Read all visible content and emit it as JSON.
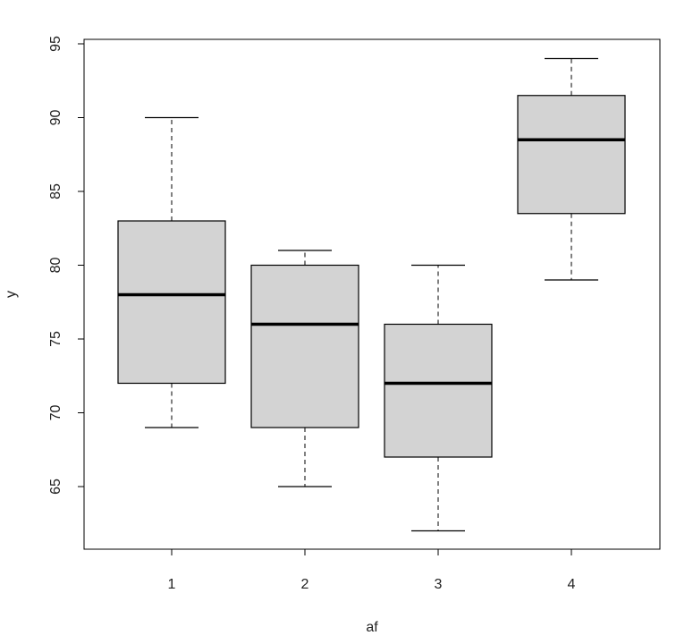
{
  "chart_data": {
    "type": "box",
    "xlabel": "af",
    "ylabel": "y",
    "ylim": [
      60,
      95
    ],
    "yticks": [
      65,
      70,
      75,
      80,
      85,
      90,
      95
    ],
    "categories": [
      "1",
      "2",
      "3",
      "4"
    ],
    "boxes": [
      {
        "category": "1",
        "min": 69,
        "q1": 72,
        "median": 78,
        "q3": 83,
        "max": 90
      },
      {
        "category": "2",
        "min": 65,
        "q1": 69,
        "median": 76,
        "q3": 80,
        "max": 81
      },
      {
        "category": "3",
        "min": 62,
        "q1": 67,
        "median": 72,
        "q3": 76,
        "max": 80
      },
      {
        "category": "4",
        "min": 79,
        "q1": 83.5,
        "median": 88.5,
        "q3": 91.5,
        "max": 94
      }
    ],
    "box_fill": "#d3d3d3",
    "grid": false,
    "legend": "none"
  }
}
